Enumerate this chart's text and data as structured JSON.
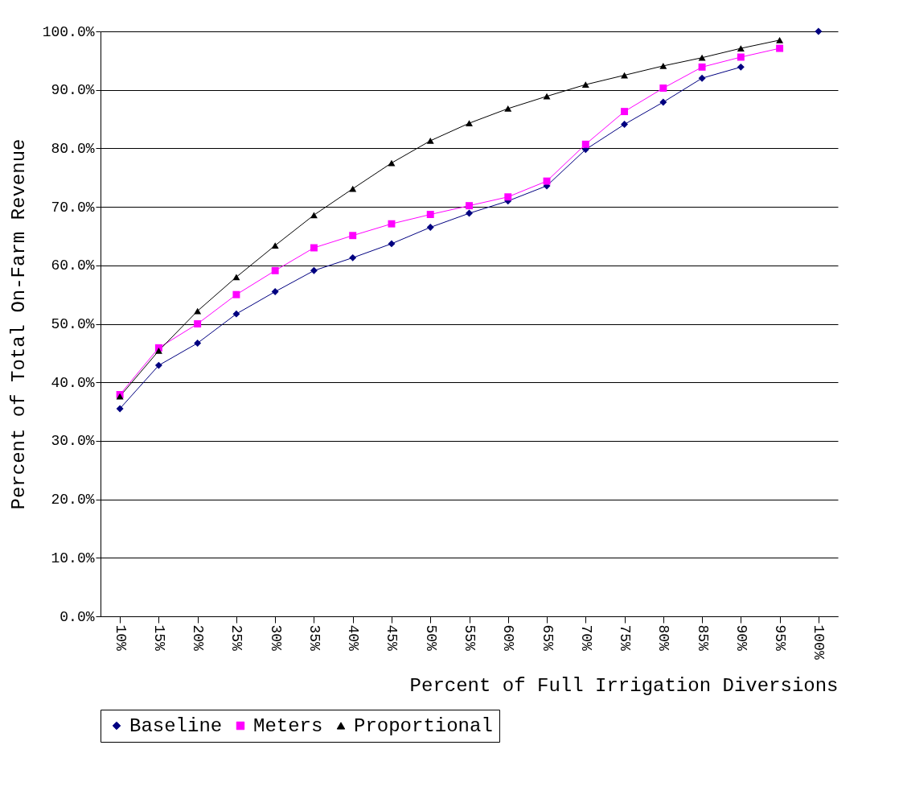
{
  "chart_data": {
    "type": "line",
    "xlabel": "Percent of Full Irrigation Diversions",
    "ylabel": "Percent of Total On-Farm Revenue",
    "categories": [
      "10%",
      "15%",
      "20%",
      "25%",
      "30%",
      "35%",
      "40%",
      "45%",
      "50%",
      "55%",
      "60%",
      "65%",
      "70%",
      "75%",
      "80%",
      "85%",
      "90%",
      "95%",
      "100%"
    ],
    "series": [
      {
        "name": "Baseline",
        "color": "#000080",
        "marker": "diamond",
        "values": [
          35.5,
          42.9,
          46.7,
          51.7,
          55.5,
          59.1,
          61.3,
          63.7,
          66.5,
          68.9,
          71.0,
          73.6,
          79.8,
          84.1,
          87.9,
          92.0,
          93.9,
          null,
          100
        ]
      },
      {
        "name": "Meters",
        "color": "#ff00ff",
        "marker": "square",
        "values": [
          37.9,
          45.9,
          50.0,
          55.0,
          59.1,
          63.0,
          65.1,
          67.1,
          68.7,
          70.2,
          71.7,
          74.4,
          80.7,
          86.3,
          90.3,
          93.9,
          95.6,
          97.1,
          null
        ]
      },
      {
        "name": "Proportional",
        "color": "#000000",
        "marker": "triangle",
        "values": [
          37.6,
          45.4,
          52.2,
          58.0,
          63.4,
          68.6,
          73.1,
          77.5,
          81.3,
          84.3,
          86.8,
          88.9,
          90.9,
          92.5,
          94.1,
          95.5,
          97.1,
          98.5,
          null
        ]
      }
    ],
    "ylim": [
      0,
      100
    ],
    "yticks": [
      {
        "value": 0,
        "label": "0.0%"
      },
      {
        "value": 10,
        "label": "10.0%"
      },
      {
        "value": 20,
        "label": "20.0%"
      },
      {
        "value": 30,
        "label": "30.0%"
      },
      {
        "value": 40,
        "label": "40.0%"
      },
      {
        "value": 50,
        "label": "50.0%"
      },
      {
        "value": 60,
        "label": "60.0%"
      },
      {
        "value": 70,
        "label": "70.0%"
      },
      {
        "value": 80,
        "label": "80.0%"
      },
      {
        "value": 90,
        "label": "90.0%"
      },
      {
        "value": 100,
        "label": "100.0%"
      }
    ],
    "grid": "y",
    "legend": "bottom"
  }
}
